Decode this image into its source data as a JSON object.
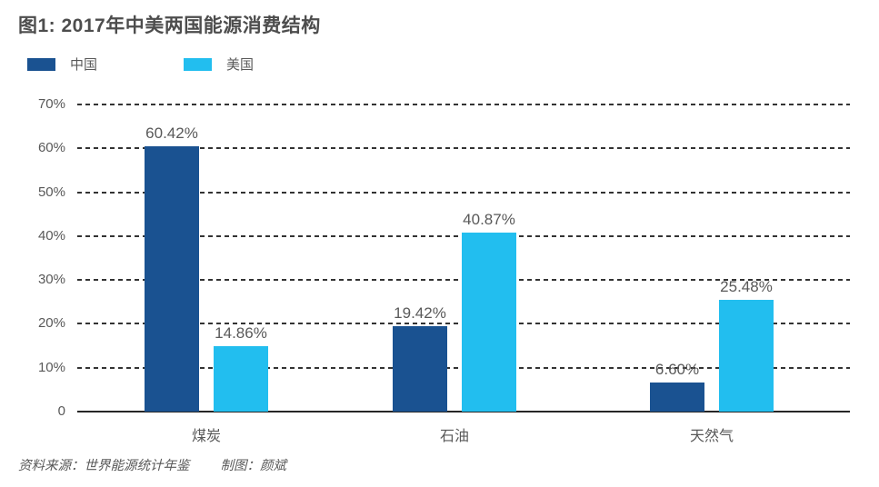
{
  "title": "图1: 2017年中美两国能源消费结构",
  "legend": {
    "items": [
      {
        "label": "中国",
        "color": "#1A5291"
      },
      {
        "label": "美国",
        "color": "#22BEEF"
      }
    ]
  },
  "source": {
    "text": "资料来源：世界能源统计年鉴",
    "credit": "制图：颜斌"
  },
  "colors": {
    "china_bar": "#1A5291",
    "us_bar": "#22BEEF",
    "axis_text": "#595959",
    "title_text": "#4d4d4d",
    "gridline": "#333333"
  },
  "chart_data": {
    "type": "bar",
    "title": "图1: 2017年中美两国能源消费结构",
    "categories": [
      "煤炭",
      "石油",
      "天然气"
    ],
    "series": [
      {
        "name": "中国",
        "color": "#1A5291",
        "values": [
          60.42,
          19.42,
          6.6
        ],
        "labels": [
          "60.42%",
          "19.42%",
          "6.60%"
        ]
      },
      {
        "name": "美国",
        "color": "#22BEEF",
        "values": [
          14.86,
          40.87,
          25.48
        ],
        "labels": [
          "14.86%",
          "40.87%",
          "25.48%"
        ]
      }
    ],
    "xlabel": "",
    "ylabel": "",
    "ylim": [
      0,
      70
    ],
    "ytick_values": [
      70,
      60,
      50,
      40,
      30,
      20,
      10,
      0
    ],
    "ytick_labels": [
      "70%",
      "60%",
      "50%",
      "40%",
      "30%",
      "20%",
      "10%",
      "0"
    ],
    "grid": "horizontal-dashed",
    "legend_position": "top-left"
  }
}
